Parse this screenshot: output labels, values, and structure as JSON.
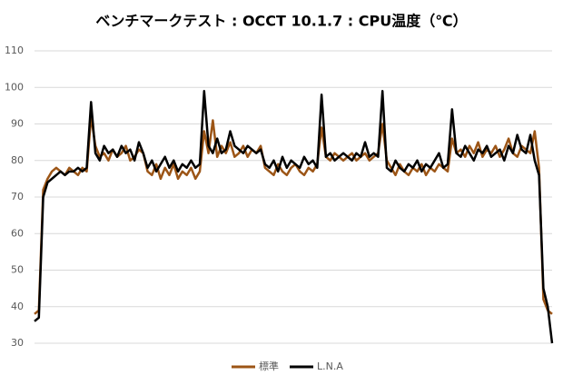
{
  "chart_data": {
    "type": "line",
    "title": "ベンチマークテスト : OCCT 10.1.7 : CPU温度（℃）",
    "categories": [
      null,
      null,
      null,
      null,
      null,
      null,
      null,
      null,
      null,
      null,
      null,
      null,
      null,
      null,
      null,
      null,
      null,
      null,
      null,
      null,
      null,
      null,
      null,
      null,
      null,
      null,
      null,
      null,
      null,
      null,
      null,
      null,
      null,
      null,
      null,
      null,
      null,
      null,
      null,
      null,
      null,
      null,
      null,
      null,
      null,
      null,
      null,
      null,
      null,
      null,
      null,
      null,
      null,
      null,
      null,
      null,
      null,
      null,
      null,
      null,
      null,
      null,
      null,
      null,
      null,
      null,
      null,
      null,
      null,
      null,
      null,
      null,
      null,
      null,
      null,
      null,
      null,
      null,
      null,
      null,
      null,
      null,
      null,
      null,
      null,
      null,
      null,
      null,
      null,
      null,
      null,
      null,
      null,
      null,
      null,
      null,
      null,
      null,
      null,
      null,
      null,
      null,
      null,
      null,
      null,
      null,
      null,
      null,
      null,
      null,
      null,
      null,
      null,
      null,
      null,
      null,
      null,
      null,
      null,
      null
    ],
    "series": [
      {
        "name": "標準",
        "color": "#9c5516",
        "values": [
          38,
          39,
          72,
          75,
          77,
          78,
          77,
          76,
          78,
          77,
          76,
          78,
          77,
          92,
          84,
          81,
          82,
          80,
          83,
          81,
          82,
          84,
          80,
          81,
          83,
          82,
          77,
          76,
          79,
          75,
          78,
          76,
          79,
          75,
          77,
          76,
          78,
          75,
          77,
          88,
          82,
          91,
          81,
          84,
          82,
          85,
          81,
          82,
          84,
          81,
          83,
          82,
          84,
          78,
          77,
          76,
          79,
          77,
          76,
          78,
          79,
          77,
          76,
          78,
          77,
          79,
          89,
          81,
          80,
          82,
          81,
          80,
          81,
          82,
          80,
          81,
          82,
          80,
          81,
          82,
          90,
          80,
          78,
          76,
          79,
          77,
          76,
          78,
          77,
          79,
          76,
          78,
          77,
          79,
          78,
          77,
          86,
          82,
          83,
          81,
          84,
          82,
          85,
          81,
          83,
          82,
          84,
          81,
          83,
          86,
          82,
          81,
          84,
          83,
          82,
          88,
          78,
          42,
          39,
          38
        ]
      },
      {
        "name": "L.N.A",
        "color": "#000000",
        "values": [
          36,
          37,
          70,
          74,
          75,
          76,
          77,
          76,
          77,
          77,
          78,
          77,
          78,
          96,
          82,
          80,
          84,
          82,
          83,
          81,
          84,
          82,
          83,
          80,
          85,
          82,
          78,
          80,
          77,
          79,
          81,
          78,
          80,
          77,
          79,
          78,
          80,
          78,
          79,
          99,
          84,
          82,
          86,
          82,
          83,
          88,
          84,
          83,
          82,
          84,
          83,
          82,
          83,
          79,
          78,
          80,
          77,
          81,
          78,
          80,
          79,
          78,
          81,
          79,
          80,
          78,
          98,
          81,
          82,
          80,
          81,
          82,
          81,
          80,
          82,
          81,
          85,
          81,
          82,
          81,
          99,
          78,
          77,
          80,
          78,
          77,
          79,
          78,
          80,
          77,
          79,
          78,
          80,
          82,
          78,
          79,
          94,
          82,
          81,
          84,
          82,
          80,
          83,
          82,
          84,
          81,
          82,
          83,
          80,
          84,
          82,
          87,
          83,
          82,
          87,
          80,
          76,
          45,
          40,
          30
        ]
      }
    ],
    "ylim": [
      30,
      110
    ],
    "yticks": [
      30,
      40,
      50,
      60,
      70,
      80,
      90,
      100,
      110
    ],
    "grid": true
  }
}
